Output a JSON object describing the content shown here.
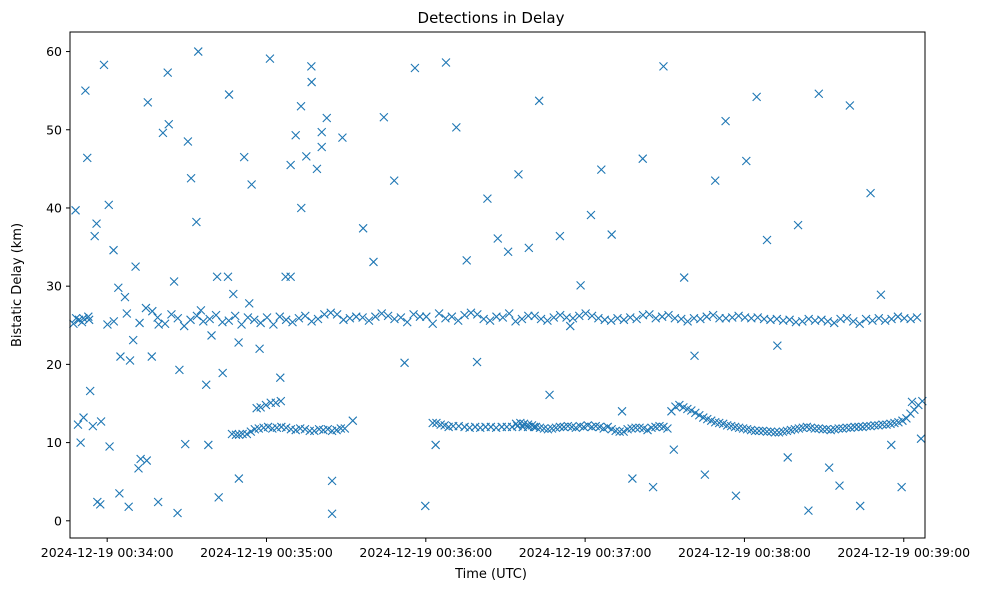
{
  "chart_data": {
    "type": "scatter",
    "title": "Detections in Delay",
    "xlabel": "Time (UTC)",
    "ylabel": "Bistatic Delay (km)",
    "marker": "x",
    "color": "#1f77b4",
    "grid": false,
    "x_axis_type": "time",
    "xlim": [
      "2024-12-19 00:33:46",
      "2024-12-19 00:39:08"
    ],
    "ylim": [
      -2.2,
      62.5
    ],
    "x_ticks": [
      "2024-12-19 00:34:00",
      "2024-12-19 00:35:00",
      "2024-12-19 00:36:00",
      "2024-12-19 00:37:00",
      "2024-12-19 00:38:00",
      "2024-12-19 00:39:00"
    ],
    "y_ticks": [
      "0",
      "10",
      "20",
      "30",
      "40",
      "50",
      "60"
    ],
    "points": {
      "x": [
        "00:33:47.3",
        "00:33:48.1",
        "00:33:49.0",
        "00:33:50.0",
        "00:33:51.0",
        "00:33:51.8",
        "00:33:52.5",
        "00:33:53.2",
        "00:33:54.6",
        "00:33:56.0",
        "00:33:57.4",
        "00:33:58.8",
        "00:34:00.6",
        "00:34:02.4",
        "00:34:04.2",
        "00:34:06.7",
        "00:34:08.6",
        "00:34:10.7",
        "00:34:12.6",
        "00:34:14.9",
        "00:34:16.8",
        "00:34:19.0",
        "00:34:21.0",
        "00:34:23.2",
        "00:34:25.2",
        "00:34:27.2",
        "00:34:29.4",
        "00:34:31.6",
        "00:34:33.6",
        "00:34:35.3",
        "00:34:37.3",
        "00:34:39.3",
        "00:34:41.4",
        "00:34:43.5",
        "00:34:45.5",
        "00:34:47.5",
        "00:34:49.5",
        "00:34:51.6",
        "00:34:54.4",
        "00:34:56.3",
        "00:34:57.8",
        "00:34:59.8",
        "00:35:01.6",
        "00:35:03.5",
        "00:35:05.4",
        "00:35:07.2",
        "00:35:09.1",
        "00:35:11.0",
        "00:35:13.1",
        "00:35:15.0",
        "00:35:17.0",
        "00:35:19.0",
        "00:35:20.8",
        "00:35:22.7",
        "00:35:24.7",
        "00:36:02.6",
        "00:36:04.0",
        "00:36:05.6",
        "00:36:07.1",
        "00:36:08.6",
        "00:36:10.3",
        "00:36:12.4",
        "00:36:14.6",
        "00:36:16.5",
        "00:36:18.6",
        "00:36:20.5",
        "00:36:22.5",
        "00:36:24.5",
        "00:36:26.5",
        "00:36:28.6",
        "00:36:30.5",
        "00:36:32.5",
        "00:36:34.5",
        "00:36:36.5",
        "00:36:38.5",
        "00:36:40.8",
        "00:34:47.0",
        "00:34:48.5",
        "00:34:49.7",
        "00:34:51.0",
        "00:34:52.6",
        "00:34:54.1",
        "00:34:55.6",
        "00:34:57.1",
        "00:34:58.9",
        "00:35:00.6",
        "00:35:02.2",
        "00:35:03.9",
        "00:35:05.6",
        "00:35:07.4",
        "00:35:09.2",
        "00:35:11.0",
        "00:35:12.7",
        "00:35:14.5",
        "00:35:16.3",
        "00:35:18.0",
        "00:35:19.8",
        "00:35:21.4",
        "00:35:23.1",
        "00:35:24.7",
        "00:35:26.4",
        "00:35:28.0",
        "00:35:29.5",
        "00:36:34.0",
        "00:36:35.6",
        "00:36:37.0",
        "00:36:38.5",
        "00:36:40.0",
        "00:36:41.5",
        "00:36:43.0",
        "00:36:44.5",
        "00:36:46.0",
        "00:36:47.5",
        "00:36:49.0",
        "00:36:50.5",
        "00:36:52.0",
        "00:36:53.5",
        "00:36:55.0",
        "00:36:56.5",
        "00:36:58.0",
        "00:36:59.5",
        "00:37:01.0",
        "00:37:02.5",
        "00:37:04.0",
        "00:37:05.5",
        "00:37:07.0",
        "00:37:08.5",
        "00:37:10.0",
        "00:37:11.5",
        "00:37:13.0",
        "00:37:14.5",
        "00:37:16.0",
        "00:37:17.5",
        "00:37:19.0",
        "00:37:20.5",
        "00:37:22.0",
        "00:37:23.5",
        "00:37:25.0",
        "00:37:26.5",
        "00:37:28.0",
        "00:37:29.5",
        "00:37:31.0",
        "00:37:32.5",
        "00:37:34.0",
        "00:37:35.5",
        "00:37:37.0",
        "00:37:38.5",
        "00:37:40.0",
        "00:37:41.5",
        "00:37:43.0",
        "00:37:44.5",
        "00:37:46.0",
        "00:37:47.5",
        "00:37:49.0",
        "00:37:50.5",
        "00:37:52.0",
        "00:37:53.5",
        "00:37:55.0",
        "00:37:56.5",
        "00:37:58.0",
        "00:37:59.5",
        "00:38:01.0",
        "00:38:02.5",
        "00:38:04.0",
        "00:38:05.5",
        "00:38:07.0",
        "00:38:08.5",
        "00:38:10.0",
        "00:38:11.5",
        "00:38:13.0",
        "00:38:14.5",
        "00:38:16.0",
        "00:38:17.5",
        "00:38:19.0",
        "00:38:20.5",
        "00:38:22.0",
        "00:38:23.5",
        "00:38:25.0",
        "00:38:26.5",
        "00:38:28.0",
        "00:38:29.5",
        "00:38:31.0",
        "00:38:32.5",
        "00:38:34.0",
        "00:38:35.5",
        "00:38:37.0",
        "00:38:38.5",
        "00:38:40.0",
        "00:38:41.5",
        "00:38:43.0",
        "00:38:44.5",
        "00:38:46.0",
        "00:38:47.5",
        "00:38:49.0",
        "00:38:50.5",
        "00:38:52.0",
        "00:38:53.5",
        "00:38:55.0",
        "00:38:56.5",
        "00:38:58.0",
        "00:38:59.5",
        "00:39:01.0",
        "00:39:02.5",
        "00:39:04.0",
        "00:39:05.5",
        "00:39:07.0",
        "00:33:48.3",
        "00:33:50.5",
        "00:33:52.9",
        "00:33:55.3",
        "00:33:57.7",
        "00:34:00.1",
        "00:34:02.5",
        "00:34:05.0",
        "00:34:07.4",
        "00:34:09.8",
        "00:34:12.2",
        "00:34:14.6",
        "00:34:17.0",
        "00:34:19.4",
        "00:34:21.8",
        "00:34:24.2",
        "00:34:26.6",
        "00:34:29.0",
        "00:34:31.4",
        "00:34:33.8",
        "00:34:36.2",
        "00:34:38.6",
        "00:34:41.0",
        "00:34:43.4",
        "00:34:45.8",
        "00:34:48.2",
        "00:34:50.6",
        "00:34:53.0",
        "00:34:55.4",
        "00:34:57.8",
        "00:35:00.2",
        "00:35:02.6",
        "00:35:05.0",
        "00:35:07.4",
        "00:35:09.8",
        "00:35:12.2",
        "00:35:14.6",
        "00:35:17.0",
        "00:35:19.4",
        "00:35:21.8",
        "00:35:24.2",
        "00:35:26.6",
        "00:35:29.0",
        "00:35:31.4",
        "00:35:33.8",
        "00:35:36.2",
        "00:35:38.6",
        "00:35:41.0",
        "00:35:43.4",
        "00:35:45.8",
        "00:35:48.2",
        "00:35:50.6",
        "00:35:53.0",
        "00:35:55.4",
        "00:35:57.8",
        "00:36:00.2",
        "00:36:02.6",
        "00:36:05.0",
        "00:36:07.4",
        "00:36:09.8",
        "00:36:12.2",
        "00:36:14.6",
        "00:36:17.0",
        "00:36:19.4",
        "00:36:21.8",
        "00:36:24.2",
        "00:36:26.6",
        "00:36:29.0",
        "00:36:31.4",
        "00:36:33.8",
        "00:36:36.2",
        "00:36:38.6",
        "00:36:41.0",
        "00:36:43.4",
        "00:36:45.8",
        "00:36:48.2",
        "00:36:50.6",
        "00:36:53.0",
        "00:36:55.4",
        "00:36:57.8",
        "00:37:00.2",
        "00:37:02.6",
        "00:37:05.0",
        "00:37:07.4",
        "00:37:09.8",
        "00:37:12.2",
        "00:37:14.6",
        "00:37:17.0",
        "00:37:19.4",
        "00:37:21.8",
        "00:37:24.2",
        "00:37:26.6",
        "00:37:29.0",
        "00:37:31.4",
        "00:37:33.8",
        "00:37:36.2",
        "00:37:38.6",
        "00:37:41.0",
        "00:37:43.4",
        "00:37:45.8",
        "00:37:48.2",
        "00:37:50.6",
        "00:37:53.0",
        "00:37:55.4",
        "00:37:57.8",
        "00:38:00.2",
        "00:38:02.6",
        "00:38:05.0",
        "00:38:07.4",
        "00:38:09.8",
        "00:38:12.2",
        "00:38:14.6",
        "00:38:17.0",
        "00:38:19.4",
        "00:38:21.8",
        "00:38:24.2",
        "00:38:26.6",
        "00:38:29.0",
        "00:38:31.4",
        "00:38:33.8",
        "00:38:36.2",
        "00:38:38.6",
        "00:38:41.0",
        "00:38:43.4",
        "00:38:45.8",
        "00:38:48.2",
        "00:38:50.6",
        "00:38:53.0",
        "00:38:55.4",
        "00:38:57.8",
        "00:39:00.2",
        "00:39:02.6",
        "00:39:05.0",
        "00:33:49.4",
        "00:33:51.1",
        "00:33:53.6",
        "00:33:56.3",
        "00:34:00.9",
        "00:34:04.6",
        "00:34:08.1",
        "00:34:11.8",
        "00:34:15.3",
        "00:34:19.2",
        "00:34:22.8",
        "00:34:26.5",
        "00:34:30.4",
        "00:34:34.3",
        "00:34:38.1",
        "00:34:42.0",
        "00:34:45.9",
        "00:34:49.6",
        "00:34:53.5",
        "00:34:57.4",
        "00:35:01.3",
        "00:35:05.2",
        "00:35:09.1",
        "00:35:13.0",
        "00:35:16.9",
        "00:35:20.8",
        "00:35:24.7",
        "00:35:28.6",
        "00:35:32.5",
        "00:35:36.4",
        "00:35:40.3",
        "00:35:44.2",
        "00:35:48.1",
        "00:35:52.0",
        "00:35:55.9",
        "00:35:59.8",
        "00:36:03.7",
        "00:36:07.6",
        "00:36:11.5",
        "00:36:15.4",
        "00:36:19.3",
        "00:36:23.2",
        "00:36:27.1",
        "00:36:31.0",
        "00:36:34.9",
        "00:36:38.8",
        "00:36:42.7",
        "00:36:46.6",
        "00:36:50.5",
        "00:36:54.4",
        "00:36:58.3",
        "00:37:02.2",
        "00:37:06.1",
        "00:37:10.0",
        "00:37:13.9",
        "00:37:17.8",
        "00:37:21.7",
        "00:37:25.6",
        "00:37:29.5",
        "00:37:33.4",
        "00:37:37.3",
        "00:37:41.2",
        "00:37:45.1",
        "00:37:49.0",
        "00:37:52.9",
        "00:37:56.8",
        "00:38:00.7",
        "00:38:04.6",
        "00:38:08.5",
        "00:38:12.4",
        "00:38:16.3",
        "00:38:20.2",
        "00:38:24.1",
        "00:38:28.0",
        "00:38:31.9",
        "00:38:35.8",
        "00:38:39.7",
        "00:38:43.6",
        "00:38:47.5",
        "00:38:51.4",
        "00:38:55.3",
        "00:38:59.2",
        "00:39:03.1",
        "00:39:06.5"
      ],
      "y": [
        25.2,
        39.7,
        12.3,
        10.0,
        25.9,
        55.0,
        46.4,
        25.7,
        12.1,
        38.0,
        2.1,
        58.3,
        40.4,
        34.6,
        29.8,
        28.6,
        20.5,
        32.5,
        7.9,
        7.7,
        21.0,
        26.0,
        49.6,
        50.7,
        30.6,
        19.3,
        9.8,
        43.8,
        38.2,
        26.9,
        17.4,
        23.7,
        31.2,
        18.9,
        31.2,
        29.0,
        22.8,
        46.5,
        43.0,
        14.4,
        14.5,
        14.8,
        15.1,
        15.1,
        15.3,
        31.2,
        31.2,
        49.3,
        40.0,
        46.6,
        56.1,
        45.0,
        49.7,
        51.5,
        5.1,
        12.5,
        12.5,
        12.3,
        12.2,
        12.0,
        12.1,
        12.1,
        12.0,
        11.9,
        12.0,
        11.9,
        12.0,
        12.0,
        11.9,
        12.0,
        12.0,
        12.0,
        12.1,
        12.0,
        12.0,
        12.0,
        11.1,
        11.0,
        11.0,
        11.1,
        11.1,
        11.4,
        11.7,
        11.8,
        11.9,
        12.0,
        11.8,
        11.9,
        12.0,
        11.9,
        11.7,
        11.6,
        11.8,
        11.7,
        11.5,
        11.5,
        11.7,
        11.6,
        11.7,
        11.5,
        11.6,
        11.8,
        11.8,
        12.4,
        12.5,
        12.4,
        12.3,
        12.2,
        12.0,
        11.9,
        11.8,
        11.7,
        11.8,
        11.9,
        12.0,
        12.0,
        12.1,
        12.0,
        11.9,
        12.1,
        12.0,
        12.2,
        12.0,
        12.1,
        12.0,
        11.8,
        12.0,
        11.7,
        11.5,
        11.4,
        11.4,
        11.7,
        11.8,
        11.9,
        11.9,
        11.8,
        11.6,
        11.9,
        12.0,
        12.1,
        12.0,
        11.8,
        14.0,
        14.6,
        14.8,
        14.5,
        14.3,
        14.1,
        13.8,
        13.5,
        13.2,
        13.0,
        12.8,
        12.6,
        12.5,
        12.4,
        12.2,
        12.1,
        12.0,
        11.9,
        11.8,
        11.7,
        11.6,
        11.5,
        11.5,
        11.5,
        11.4,
        11.4,
        11.3,
        11.3,
        11.4,
        11.5,
        11.6,
        11.7,
        11.8,
        11.9,
        12.0,
        11.9,
        11.8,
        11.8,
        11.7,
        11.7,
        11.6,
        11.7,
        11.8,
        11.8,
        11.9,
        11.9,
        12.0,
        12.0,
        12.0,
        12.1,
        12.1,
        12.2,
        12.2,
        12.3,
        12.3,
        12.4,
        12.5,
        12.6,
        12.8,
        13.1,
        13.7,
        14.2,
        14.8,
        15.3,
        25.9,
        25.4,
        26.1,
        36.4,
        12.7,
        25.1,
        25.5,
        21.0,
        26.5,
        23.1,
        25.3,
        27.2,
        26.8,
        25.1,
        25.2,
        26.4,
        25.9,
        24.9,
        25.7,
        26.2,
        25.5,
        25.8,
        26.3,
        25.4,
        25.6,
        26.2,
        25.1,
        26.0,
        25.7,
        25.3,
        26.0,
        25.1,
        26.1,
        25.7,
        25.4,
        25.9,
        26.2,
        25.5,
        25.8,
        26.4,
        26.6,
        26.4,
        25.7,
        25.9,
        26.1,
        26.0,
        25.6,
        26.1,
        26.5,
        26.2,
        25.8,
        26.0,
        25.4,
        26.4,
        26.1,
        26.1,
        25.2,
        26.5,
        25.9,
        26.1,
        25.6,
        26.3,
        26.6,
        26.4,
        25.8,
        25.6,
        26.1,
        26.0,
        26.5,
        25.5,
        25.8,
        26.2,
        26.2,
        25.8,
        25.6,
        26.0,
        26.3,
        26.0,
        25.9,
        26.2,
        26.5,
        26.2,
        25.9,
        25.7,
        25.6,
        25.9,
        25.7,
        26.0,
        25.8,
        26.3,
        26.4,
        25.9,
        26.1,
        26.3,
        25.9,
        25.8,
        25.5,
        25.9,
        25.8,
        26.1,
        26.3,
        25.9,
        25.9,
        26.0,
        26.2,
        26.0,
        25.9,
        26.0,
        25.8,
        25.7,
        25.8,
        25.6,
        25.7,
        25.4,
        25.5,
        25.8,
        25.6,
        25.7,
        25.5,
        25.3,
        25.8,
        25.9,
        25.5,
        25.2,
        25.8,
        25.6,
        25.9,
        25.6,
        25.8,
        26.1,
        25.9,
        25.8,
        26.0,
        25.7,
        13.2,
        16.6,
        2.4,
        9.5,
        3.5,
        1.8,
        6.7,
        53.5,
        2.4,
        57.3,
        1.0,
        48.5,
        60.0,
        9.7,
        3.0,
        54.5,
        5.4,
        27.8,
        22.0,
        59.1,
        18.3,
        45.5,
        53.0,
        58.1,
        47.8,
        0.9,
        49.0,
        12.8,
        37.4,
        33.1,
        51.6,
        43.5,
        20.2,
        57.9,
        1.9,
        9.7,
        58.6,
        50.3,
        33.3,
        20.3,
        41.2,
        36.1,
        34.4,
        44.3,
        34.9,
        53.7,
        16.1,
        36.4,
        24.9,
        30.1,
        39.1,
        44.9,
        36.6,
        14.0,
        5.4,
        46.3,
        4.3,
        58.1,
        9.1,
        31.1,
        21.1,
        5.9,
        43.5,
        51.1,
        3.2,
        46.0,
        54.2,
        35.9,
        22.4,
        8.1,
        37.8,
        1.3,
        54.6,
        6.8,
        4.5,
        53.1,
        1.9,
        41.9,
        28.9,
        9.7,
        4.3,
        15.2,
        10.5
      ]
    }
  }
}
